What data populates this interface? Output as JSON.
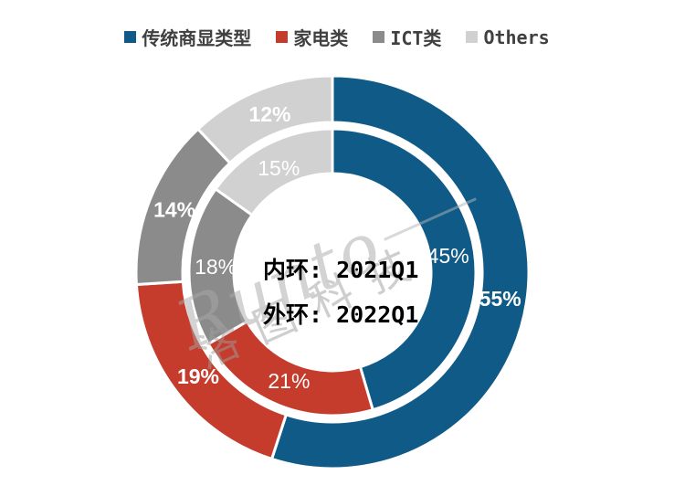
{
  "legend": {
    "items": [
      {
        "label": "传统商显类型",
        "color": "#0F5A87"
      },
      {
        "label": "家电类",
        "color": "#C53B2C"
      },
      {
        "label": "ICT类",
        "color": "#8B8B8B"
      },
      {
        "label": "Others",
        "color": "#D1D1D1"
      }
    ]
  },
  "center_text": {
    "line1": "内环: 2021Q1",
    "line2": "外环: 2022Q1"
  },
  "watermark": {
    "latin": "Runto",
    "cjk": "洛图科技"
  },
  "chart_data": {
    "type": "pie",
    "subtype": "double-ring-donut",
    "categories": [
      "传统商显类型",
      "家电类",
      "ICT类",
      "Others"
    ],
    "colors": [
      "#0F5A87",
      "#C53B2C",
      "#8B8B8B",
      "#D1D1D1"
    ],
    "series": [
      {
        "name": "2021Q1",
        "ring": "inner",
        "values": [
          45,
          21,
          18,
          15
        ],
        "labels": [
          "45%",
          "21%",
          "18%",
          "15%"
        ]
      },
      {
        "name": "2022Q1",
        "ring": "outer",
        "values": [
          55,
          19,
          14,
          12
        ],
        "labels": [
          "55%",
          "19%",
          "14%",
          "12%"
        ]
      }
    ],
    "start_angle_deg": 0,
    "direction": "clockwise",
    "label_color": "#FFFFFF",
    "legend_position": "top",
    "separator_color": "#FFFFFF"
  }
}
